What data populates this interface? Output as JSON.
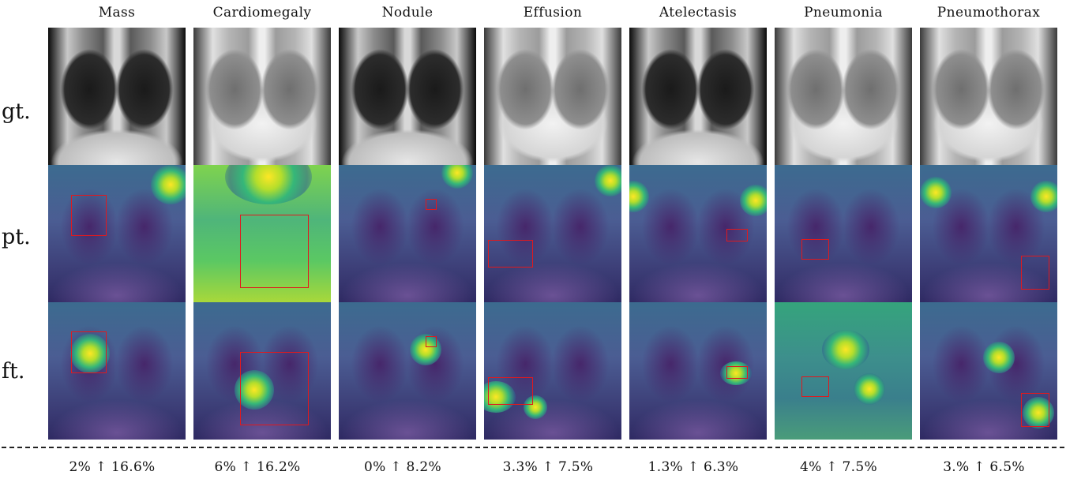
{
  "columns": [
    {
      "title": "Mass",
      "stat": "2% ↑ 16.6%"
    },
    {
      "title": "Cardiomegaly",
      "stat": "6% ↑ 16.2%"
    },
    {
      "title": "Nodule",
      "stat": "0% ↑ 8.2%"
    },
    {
      "title": "Effusion",
      "stat": "3.3% ↑ 7.5%"
    },
    {
      "title": "Atelectasis",
      "stat": "1.3% ↑ 6.3%"
    },
    {
      "title": "Pneumonia",
      "stat": "4% ↑ 7.5%"
    },
    {
      "title": "Pneumothorax",
      "stat": "3.% ↑ 6.5%"
    }
  ],
  "rows": [
    {
      "label": "gt."
    },
    {
      "label": "pt."
    },
    {
      "label": "ft."
    }
  ],
  "colors": {
    "bbox": "#e0191e",
    "heatmap_high": "#fde725",
    "heatmap_low": "#440154"
  }
}
